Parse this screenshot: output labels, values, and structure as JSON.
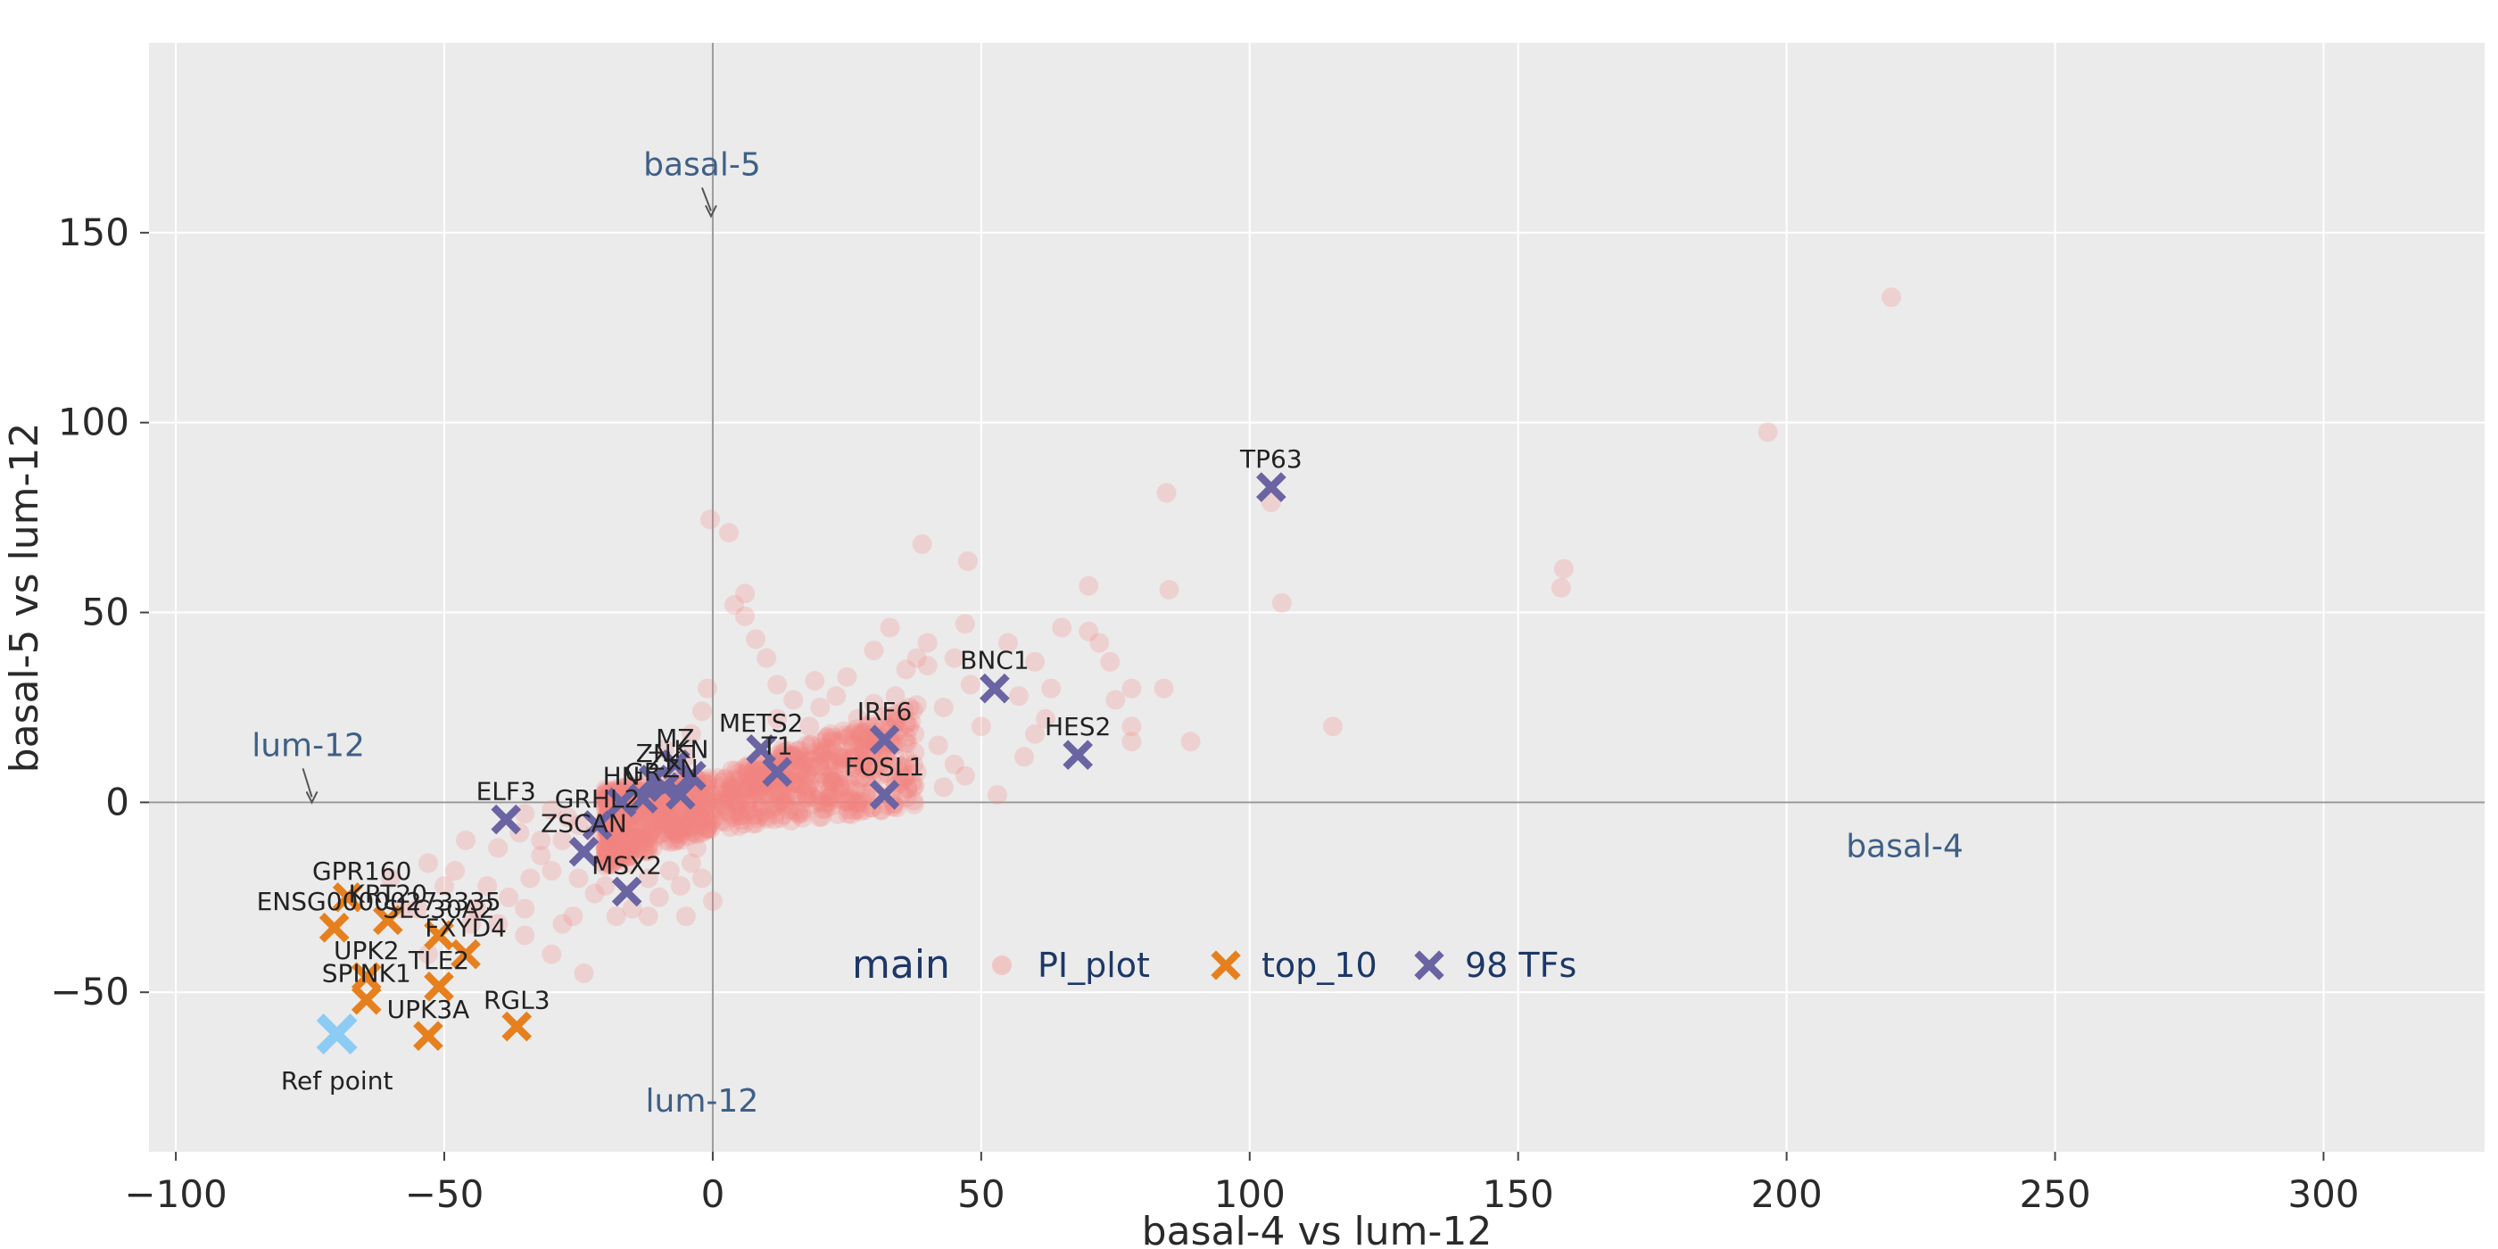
{
  "chart_data": {
    "type": "scatter",
    "xlabel": "basal-4 vs lum-12",
    "ylabel": "basal-5 vs lum-12",
    "xlim": [
      -105,
      330
    ],
    "ylim": [
      -92,
      200
    ],
    "x_ticks": [
      -100,
      -50,
      0,
      50,
      100,
      150,
      200,
      250,
      300
    ],
    "y_ticks": [
      -50,
      0,
      50,
      100,
      150
    ],
    "grid": true,
    "zero_lines": true,
    "colors": {
      "plot_bg": "#ebebeb",
      "grid": "#ffffff",
      "zero_line": "#9a9a9a",
      "pi_plot": "#f4837f",
      "top_10": "#e6801e",
      "tfs": "#6a64a3",
      "ref_point": "#8ccbf4",
      "quadrant_label": "#3e5f86",
      "legend_text": "#1d3767"
    },
    "legend": {
      "title": "main",
      "placement": "bottom-center",
      "entries": [
        {
          "name": "PI_plot",
          "marker": "circle",
          "color": "#f4837f"
        },
        {
          "name": "top_10",
          "marker": "x",
          "color": "#e6801e"
        },
        {
          "name": "98 TFs",
          "marker": "x",
          "color": "#6a64a3"
        }
      ]
    },
    "quadrant_labels": [
      {
        "text": "basal-5",
        "x": 0,
        "y": 152,
        "arrow": true,
        "anchor": "middle"
      },
      {
        "text": "lum-12",
        "x": -75,
        "y": 0,
        "arrow": true,
        "anchor": "middle"
      },
      {
        "text": "basal-4",
        "x": 222,
        "y": -5,
        "arrow": false,
        "anchor": "middle"
      },
      {
        "text": "lum-12",
        "x": -2,
        "y": -72,
        "arrow": false,
        "anchor": "middle"
      }
    ],
    "series": [
      {
        "name": "PI_plot",
        "marker": "circle",
        "color": "#f4837f",
        "opacity": 0.25,
        "dense_cluster": {
          "x_range": [
            -20,
            38
          ],
          "y_range": [
            -20,
            30
          ]
        },
        "points": [
          [
            219.5,
            133
          ],
          [
            196.5,
            97.5
          ],
          [
            158.5,
            61.5
          ],
          [
            158,
            56.5
          ],
          [
            106,
            52.5
          ],
          [
            104,
            79
          ],
          [
            115.5,
            20
          ],
          [
            84.5,
            81.5
          ],
          [
            85,
            56
          ],
          [
            89,
            16
          ],
          [
            78,
            20
          ],
          [
            72,
            42
          ],
          [
            70,
            57
          ],
          [
            70,
            45
          ],
          [
            65,
            46
          ],
          [
            47.5,
            63.5
          ],
          [
            39,
            68
          ],
          [
            33,
            46
          ],
          [
            47,
            47
          ],
          [
            55,
            42
          ],
          [
            60,
            37
          ],
          [
            75,
            27
          ],
          [
            74,
            37
          ],
          [
            78,
            30
          ],
          [
            84,
            30
          ],
          [
            78,
            16
          ],
          [
            62,
            22
          ],
          [
            63,
            30
          ],
          [
            57,
            28
          ],
          [
            48,
            31
          ],
          [
            45,
            38
          ],
          [
            43,
            25
          ],
          [
            40,
            36
          ],
          [
            40,
            42
          ],
          [
            38,
            38
          ],
          [
            36,
            35
          ],
          [
            34,
            28
          ],
          [
            30,
            26
          ],
          [
            27,
            22
          ],
          [
            23,
            28
          ],
          [
            20,
            25
          ],
          [
            15,
            27
          ],
          [
            12,
            31
          ],
          [
            10,
            38
          ],
          [
            8,
            43
          ],
          [
            6,
            49
          ],
          [
            4,
            52
          ],
          [
            3,
            71
          ],
          [
            -0.5,
            74.5
          ],
          [
            6,
            55
          ],
          [
            12,
            22
          ],
          [
            30,
            40
          ],
          [
            25,
            33
          ],
          [
            19,
            32
          ],
          [
            42,
            15
          ],
          [
            50,
            20
          ],
          [
            53,
            2
          ],
          [
            60,
            18
          ],
          [
            58,
            12
          ],
          [
            45,
            10
          ],
          [
            47,
            7
          ],
          [
            43,
            4
          ],
          [
            38,
            8
          ],
          [
            35,
            5
          ],
          [
            32,
            12
          ],
          [
            28,
            15
          ],
          [
            22,
            18
          ],
          [
            18,
            20
          ],
          [
            13,
            14
          ],
          [
            -5,
            12
          ],
          [
            -7,
            8
          ],
          [
            -9,
            14
          ],
          [
            -4,
            18
          ],
          [
            -2,
            24
          ],
          [
            -1,
            30
          ],
          [
            -3,
            6
          ],
          [
            -6,
            4
          ],
          [
            -20,
            -15
          ],
          [
            -25,
            -20
          ],
          [
            -30,
            -18
          ],
          [
            -35,
            -28
          ],
          [
            -38,
            -25
          ],
          [
            -40,
            -32
          ],
          [
            -28,
            -32
          ],
          [
            -15,
            -28
          ],
          [
            -18,
            -30
          ],
          [
            -22,
            -24
          ],
          [
            -30,
            -40
          ],
          [
            -24,
            -45
          ],
          [
            -45,
            -32
          ],
          [
            -53,
            -40
          ],
          [
            -55,
            -28
          ],
          [
            -50,
            -22
          ],
          [
            -53,
            -16
          ],
          [
            -48,
            -18
          ],
          [
            -42,
            -22
          ],
          [
            -44,
            -28
          ],
          [
            -35,
            -35
          ],
          [
            -26,
            -30
          ],
          [
            -20,
            -22
          ],
          [
            -12,
            -20
          ],
          [
            -10,
            -25
          ],
          [
            -8,
            -18
          ],
          [
            -6,
            -22
          ],
          [
            -4,
            -16
          ],
          [
            -2,
            -20
          ],
          [
            0,
            -26
          ],
          [
            -14,
            -12
          ],
          [
            -16,
            -8
          ],
          [
            -19,
            -5
          ],
          [
            -22,
            -8
          ],
          [
            -25,
            -6
          ],
          [
            -28,
            -10
          ],
          [
            -32,
            -14
          ],
          [
            -36,
            -8
          ],
          [
            -40,
            -12
          ],
          [
            -34,
            -20
          ],
          [
            -46,
            -10
          ],
          [
            -60,
            -20
          ],
          [
            -58,
            -28
          ],
          [
            -32,
            -10
          ],
          [
            -27,
            -4
          ],
          [
            -12,
            -30
          ],
          [
            -5,
            -30
          ],
          [
            -3,
            -12
          ],
          [
            -8,
            -3
          ],
          [
            -11,
            0
          ],
          [
            -30,
            -2
          ],
          [
            -35,
            -3
          ],
          [
            -15,
            2
          ],
          [
            -18,
            -2
          ],
          [
            -2,
            -8
          ],
          [
            -6,
            -10
          ],
          [
            -16,
            -16
          ]
        ]
      },
      {
        "name": "top_10",
        "marker": "x",
        "color": "#e6801e",
        "points": [
          {
            "label": "GPR160",
            "x": -68,
            "y": -25
          },
          {
            "label": "ENSG00000273335",
            "x": -70.5,
            "y": -33
          },
          {
            "label": "KRT20",
            "x": -60.5,
            "y": -31
          },
          {
            "label": "SLC30A2",
            "x": -51,
            "y": -35
          },
          {
            "label": "FXYD4",
            "x": -46,
            "y": -40
          },
          {
            "label": "UPK2",
            "x": -64.5,
            "y": -46
          },
          {
            "label": "SPINK1",
            "x": -64.5,
            "y": -52
          },
          {
            "label": "TLE2",
            "x": -51,
            "y": -48.5
          },
          {
            "label": "UPK3A",
            "x": -53,
            "y": -61.5
          },
          {
            "label": "RGL3",
            "x": -36.5,
            "y": -59
          }
        ]
      },
      {
        "name": "98 TFs",
        "marker": "x",
        "color": "#6a64a3",
        "points": [
          {
            "label": "TP63",
            "x": 104,
            "y": 83
          },
          {
            "label": "BNC1",
            "x": 52.5,
            "y": 30
          },
          {
            "label": "HES2",
            "x": 68,
            "y": 12.5
          },
          {
            "label": "IRF6",
            "x": 32,
            "y": 16.5
          },
          {
            "label": "FOSL1",
            "x": 32,
            "y": 2
          },
          {
            "label": "METS2",
            "x": 9,
            "y": 14
          },
          {
            "label": "T1",
            "x": 12,
            "y": 8
          },
          {
            "label": "ELF3",
            "x": -38.5,
            "y": -4.5
          },
          {
            "label": "GRHL2",
            "x": -21.5,
            "y": -6
          },
          {
            "label": "ZSCAN",
            "x": -24,
            "y": -13
          },
          {
            "label": "MSX2",
            "x": -16,
            "y": -23.5
          },
          {
            "label": "ZN",
            "x": -11,
            "y": 6
          },
          {
            "label": "ZK",
            "x": -9,
            "y": 4
          },
          {
            "label": "MZ",
            "x": -7,
            "y": 10
          },
          {
            "label": "KN",
            "x": -4,
            "y": 7
          },
          {
            "label": "GR",
            "x": -13,
            "y": 1
          },
          {
            "label": "HN",
            "x": -17,
            "y": 0
          },
          {
            "label": "ZN",
            "x": -6,
            "y": 2
          }
        ]
      },
      {
        "name": "Ref point",
        "marker": "x",
        "color": "#8ccbf4",
        "points": [
          {
            "label": "Ref point",
            "x": -70,
            "y": -61
          }
        ]
      }
    ]
  }
}
